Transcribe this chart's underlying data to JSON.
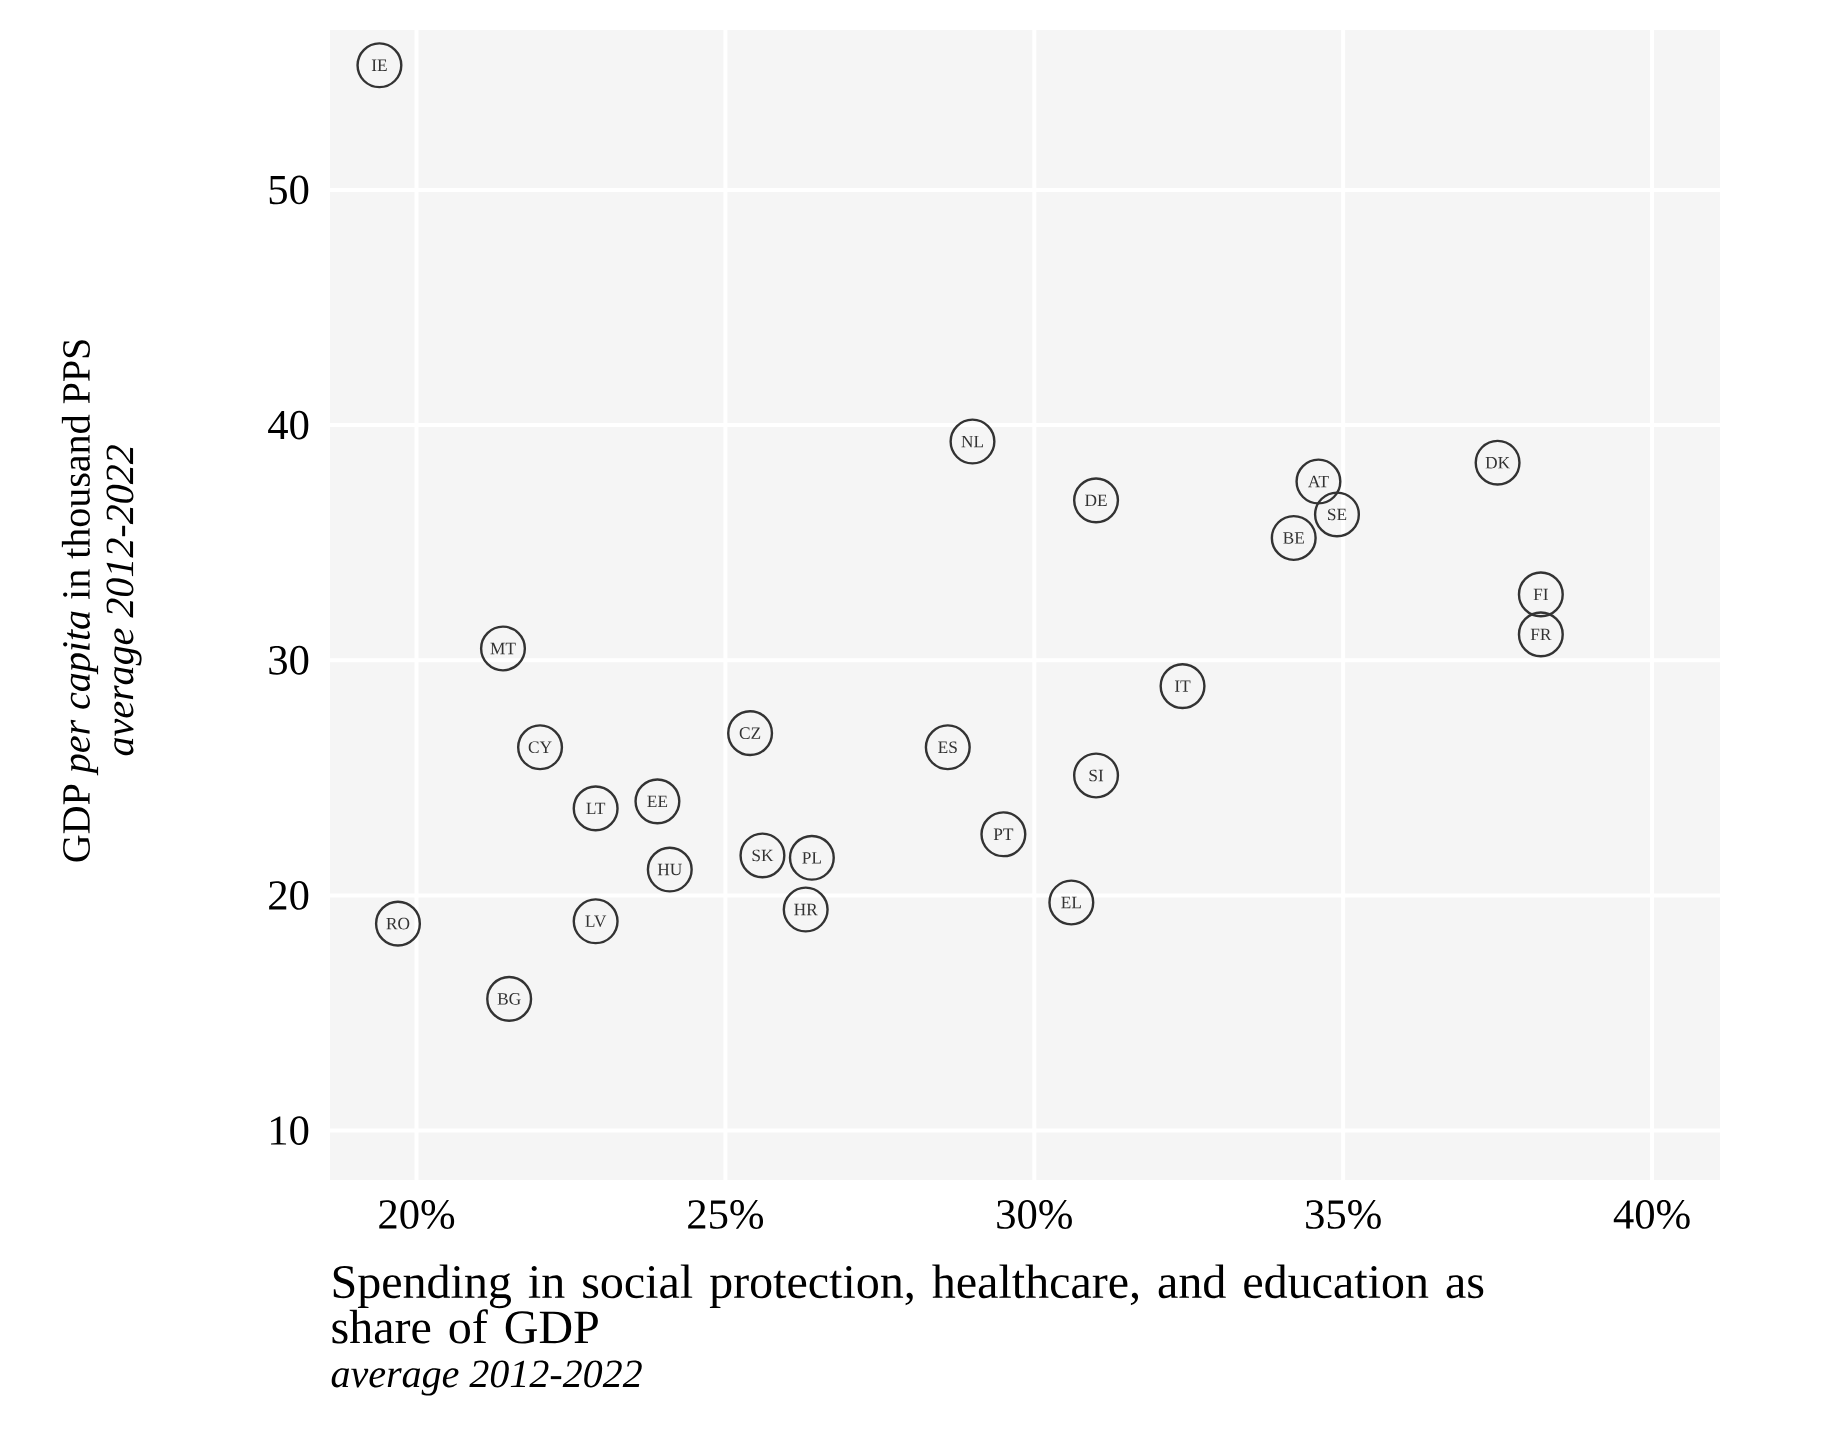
{
  "chart_data": {
    "type": "scatter",
    "xlabel": "Spending in social protection, healthcare, and education as share of GDP",
    "ylabel": "GDP *per capita* in thousand PPS",
    "xlim": [
      18.6,
      41.1
    ],
    "ylim": [
      7.9,
      56.8
    ],
    "xticks": [
      {
        "value": 20,
        "label": "20%"
      },
      {
        "value": 25,
        "label": "25%"
      },
      {
        "value": 30,
        "label": "30%"
      },
      {
        "value": 35,
        "label": "35%"
      },
      {
        "value": 40,
        "label": "40%"
      }
    ],
    "yticks": [
      10,
      20,
      30,
      40,
      50
    ],
    "grid": true,
    "marker": "circle",
    "series": [
      {
        "color": "#333333",
        "x": [
          19.4,
          29.0,
          21.4,
          22.0,
          22.9,
          23.9,
          24.1,
          22.9,
          19.7,
          21.5,
          25.4,
          25.6,
          26.4,
          26.3,
          28.6,
          29.5,
          31.0,
          32.4,
          31.0,
          30.6,
          34.6,
          34.9,
          34.2,
          37.5,
          38.2,
          38.2
        ],
        "values": [
          55.3,
          39.3,
          30.5,
          26.3,
          23.7,
          24.0,
          21.1,
          18.9,
          18.8,
          15.6,
          26.9,
          21.7,
          21.6,
          19.4,
          26.3,
          22.6,
          36.8,
          28.9,
          25.1,
          19.7,
          37.6,
          36.2,
          35.2,
          38.4,
          32.8,
          31.1
        ]
      }
    ],
    "annotations": [
      {
        "text": "IE",
        "x": 19.4,
        "y": 55.3
      },
      {
        "text": "NL",
        "x": 29.0,
        "y": 39.3
      },
      {
        "text": "MT",
        "x": 21.4,
        "y": 30.5
      },
      {
        "text": "CY",
        "x": 22.0,
        "y": 26.3
      },
      {
        "text": "LT",
        "x": 22.9,
        "y": 23.7
      },
      {
        "text": "EE",
        "x": 23.9,
        "y": 24.0
      },
      {
        "text": "HU",
        "x": 24.1,
        "y": 21.1
      },
      {
        "text": "LV",
        "x": 22.9,
        "y": 18.9
      },
      {
        "text": "RO",
        "x": 19.7,
        "y": 18.8
      },
      {
        "text": "BG",
        "x": 21.5,
        "y": 15.6
      },
      {
        "text": "CZ",
        "x": 25.4,
        "y": 26.9
      },
      {
        "text": "SK",
        "x": 25.6,
        "y": 21.7
      },
      {
        "text": "PL",
        "x": 26.4,
        "y": 21.6
      },
      {
        "text": "HR",
        "x": 26.3,
        "y": 19.4
      },
      {
        "text": "ES",
        "x": 28.6,
        "y": 26.3
      },
      {
        "text": "PT",
        "x": 29.5,
        "y": 22.6
      },
      {
        "text": "DE",
        "x": 31.0,
        "y": 36.8
      },
      {
        "text": "IT",
        "x": 32.4,
        "y": 28.9
      },
      {
        "text": "SI",
        "x": 31.0,
        "y": 25.1
      },
      {
        "text": "EL",
        "x": 30.6,
        "y": 19.7
      },
      {
        "text": "AT",
        "x": 34.6,
        "y": 37.6
      },
      {
        "text": "SE",
        "x": 34.9,
        "y": 36.2
      },
      {
        "text": "BE",
        "x": 34.2,
        "y": 35.2
      },
      {
        "text": "DK",
        "x": 37.5,
        "y": 38.4
      },
      {
        "text": "FI",
        "x": 38.2,
        "y": 32.8
      },
      {
        "text": "FR",
        "x": 38.2,
        "y": 31.1
      },
      "average 2012-2022",
      "average 2012-2022"
    ]
  }
}
